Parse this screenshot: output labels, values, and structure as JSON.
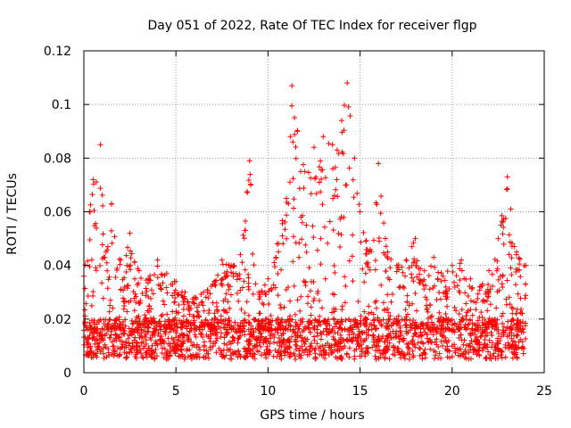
{
  "chart_data": {
    "type": "scatter",
    "title": "Day 051 of 2022, Rate Of TEC Index for receiver flgp",
    "xlabel": "GPS time / hours",
    "ylabel": "ROTI / TECUs",
    "xlim": [
      0,
      25
    ],
    "ylim": [
      0,
      0.12
    ],
    "x_ticks": [
      0,
      5,
      10,
      15,
      20,
      25
    ],
    "x_tick_labels": [
      "0",
      "5",
      "10",
      "15",
      "20",
      "25"
    ],
    "y_ticks": [
      0,
      0.02,
      0.04,
      0.06,
      0.08,
      0.1,
      0.12
    ],
    "y_tick_labels": [
      "0",
      "0.02",
      "0.04",
      "0.06",
      "0.08",
      "0.1",
      "0.12"
    ],
    "grid": true,
    "marker": "+",
    "color": "#ff0000",
    "x_range_observed": [
      0,
      24
    ],
    "envelope_note": "dense band of points; approximate upper envelope (hour, ROTI) listed below",
    "upper_envelope": [
      [
        0,
        0.036
      ],
      [
        0.3,
        0.06
      ],
      [
        0.5,
        0.072
      ],
      [
        0.9,
        0.085
      ],
      [
        1.2,
        0.045
      ],
      [
        1.5,
        0.063
      ],
      [
        2,
        0.042
      ],
      [
        2.5,
        0.052
      ],
      [
        3,
        0.038
      ],
      [
        3.5,
        0.035
      ],
      [
        4,
        0.042
      ],
      [
        4.5,
        0.037
      ],
      [
        5,
        0.034
      ],
      [
        5.5,
        0.03
      ],
      [
        6,
        0.028
      ],
      [
        6.5,
        0.03
      ],
      [
        7,
        0.033
      ],
      [
        7.5,
        0.042
      ],
      [
        8,
        0.04
      ],
      [
        8.5,
        0.044
      ],
      [
        9,
        0.079
      ],
      [
        9.5,
        0.03
      ],
      [
        10,
        0.035
      ],
      [
        10.5,
        0.048
      ],
      [
        11,
        0.065
      ],
      [
        11.3,
        0.107
      ],
      [
        11.6,
        0.09
      ],
      [
        12,
        0.075
      ],
      [
        12.5,
        0.084
      ],
      [
        13,
        0.088
      ],
      [
        13.5,
        0.085
      ],
      [
        14,
        0.094
      ],
      [
        14.3,
        0.108
      ],
      [
        14.7,
        0.08
      ],
      [
        15,
        0.06
      ],
      [
        15.5,
        0.045
      ],
      [
        16,
        0.078
      ],
      [
        16.5,
        0.045
      ],
      [
        17,
        0.04
      ],
      [
        17.5,
        0.042
      ],
      [
        18,
        0.05
      ],
      [
        18.5,
        0.038
      ],
      [
        19,
        0.043
      ],
      [
        19.5,
        0.036
      ],
      [
        20,
        0.04
      ],
      [
        20.5,
        0.042
      ],
      [
        21,
        0.035
      ],
      [
        21.5,
        0.032
      ],
      [
        22,
        0.038
      ],
      [
        22.5,
        0.05
      ],
      [
        23,
        0.073
      ],
      [
        23.5,
        0.045
      ],
      [
        24,
        0.04
      ]
    ],
    "baseline_band": [
      0.005,
      0.02
    ]
  }
}
